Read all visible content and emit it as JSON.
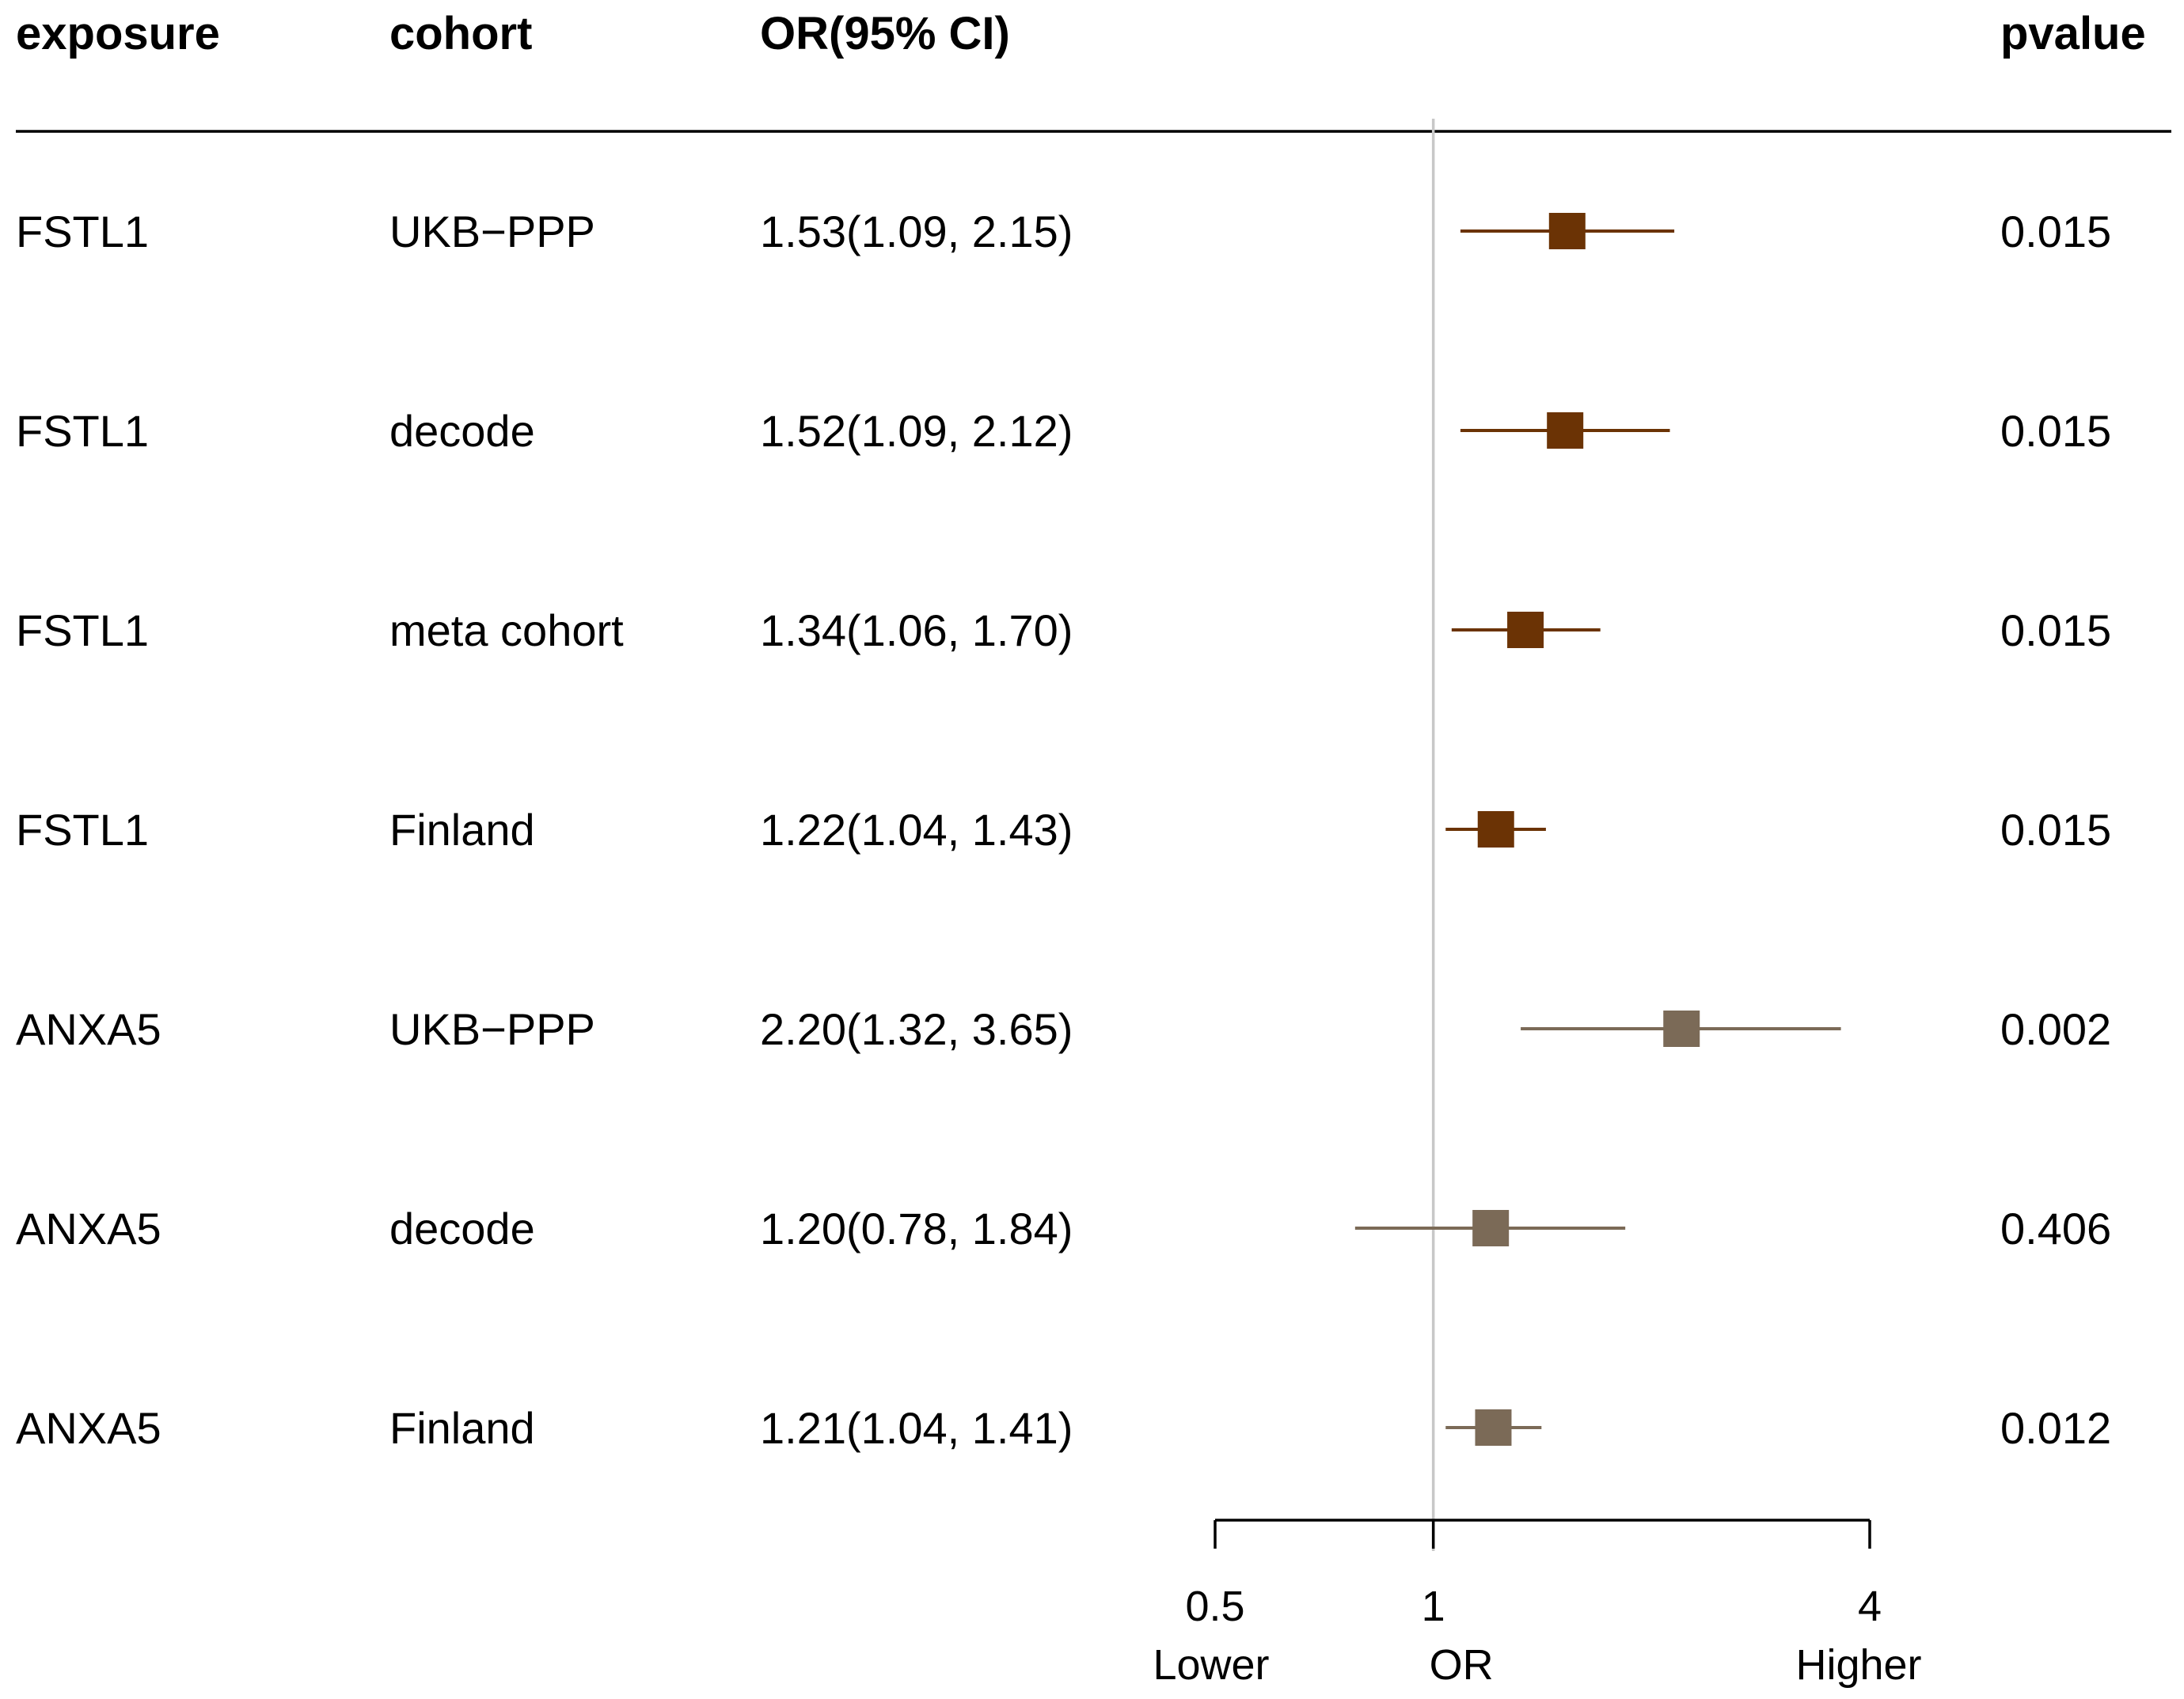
{
  "chart_data": {
    "type": "forest",
    "columns": {
      "exposure": "exposure",
      "cohort": "cohort",
      "or_ci": "OR(95% CI)",
      "pvalue": "pvalue"
    },
    "rows": [
      {
        "exposure": "FSTL1",
        "cohort": "UKB−PPP",
        "or_text": "1.53(1.09, 2.15)",
        "or": 1.53,
        "lo": 1.09,
        "hi": 2.15,
        "pvalue": "0.015",
        "group": "FSTL1"
      },
      {
        "exposure": "FSTL1",
        "cohort": "decode",
        "or_text": "1.52(1.09, 2.12)",
        "or": 1.52,
        "lo": 1.09,
        "hi": 2.12,
        "pvalue": "0.015",
        "group": "FSTL1"
      },
      {
        "exposure": "FSTL1",
        "cohort": "meta cohort",
        "or_text": "1.34(1.06, 1.70)",
        "or": 1.34,
        "lo": 1.06,
        "hi": 1.7,
        "pvalue": "0.015",
        "group": "FSTL1"
      },
      {
        "exposure": "FSTL1",
        "cohort": "Finland",
        "or_text": "1.22(1.04, 1.43)",
        "or": 1.22,
        "lo": 1.04,
        "hi": 1.43,
        "pvalue": "0.015",
        "group": "FSTL1"
      },
      {
        "exposure": "ANXA5",
        "cohort": "UKB−PPP",
        "or_text": "2.20(1.32, 3.65)",
        "or": 2.2,
        "lo": 1.32,
        "hi": 3.65,
        "pvalue": "0.002",
        "group": "ANXA5"
      },
      {
        "exposure": "ANXA5",
        "cohort": "decode",
        "or_text": "1.20(0.78, 1.84)",
        "or": 1.2,
        "lo": 0.78,
        "hi": 1.84,
        "pvalue": "0.406",
        "group": "ANXA5"
      },
      {
        "exposure": "ANXA5",
        "cohort": "Finland",
        "or_text": "1.21(1.04, 1.41)",
        "or": 1.21,
        "lo": 1.04,
        "hi": 1.41,
        "pvalue": "0.012",
        "group": "ANXA5"
      }
    ],
    "x_axis": {
      "scale": "log2",
      "ticks": [
        0.5,
        1,
        4
      ],
      "tick_labels": [
        "0.5",
        "1",
        "4"
      ],
      "labels": {
        "lower": "Lower",
        "center": "OR",
        "higher": "Higher"
      },
      "reference_line": 1
    },
    "colors": {
      "FSTL1": "#6b3305",
      "ANXA5": "#7b6a57",
      "reference": "#c8c8c8"
    }
  }
}
